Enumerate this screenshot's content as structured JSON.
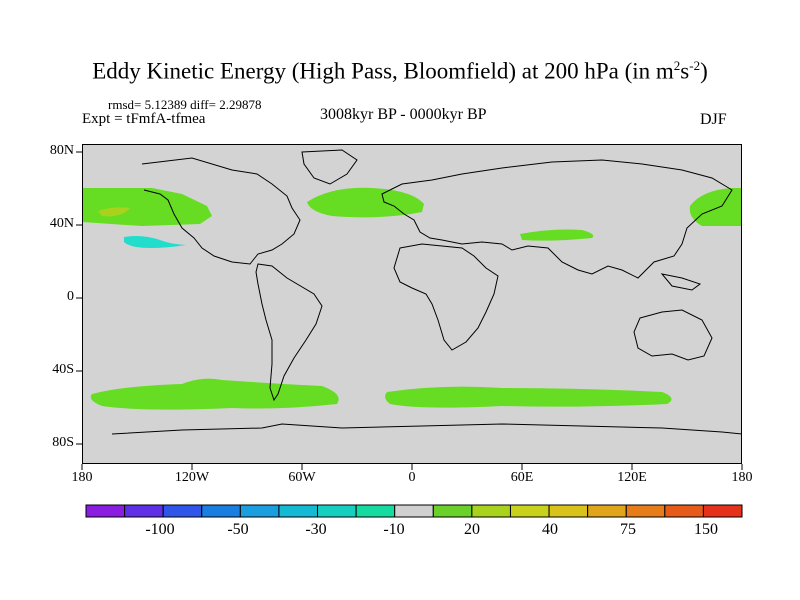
{
  "title_main": "Eddy Kinetic Energy (High Pass, Bloomfield) at 200 hPa (in m",
  "title_sup1": "2",
  "title_mid": "s",
  "title_sup2": "-2",
  "title_end": ")",
  "stats": "rmsd= 5.12389 diff= 2.29878",
  "experiment": "Expt = tFmfA-tfmea",
  "period": "3008kyr BP - 0000kyr BP",
  "season": "DJF",
  "lat_labels": [
    "80N",
    "40N",
    "0",
    "40S",
    "80S"
  ],
  "lon_labels": [
    "180",
    "120W",
    "60W",
    "0",
    "60E",
    "120E",
    "180"
  ],
  "colorbar": {
    "labels": [
      "-100",
      "-50",
      "-30",
      "-10",
      "20",
      "40",
      "75",
      "150"
    ],
    "colors": [
      "#8a1de0",
      "#5f2fe6",
      "#2f56e8",
      "#1a7ee0",
      "#1b9ee0",
      "#14b9d4",
      "#17cfc0",
      "#15dba0",
      "#d0d0d0",
      "#6ad12a",
      "#a8d21c",
      "#c8d21c",
      "#d9c21a",
      "#e0a51a",
      "#e67d1a",
      "#e65a1a",
      "#e6321a"
    ]
  },
  "map_colors": {
    "background": "#d3d3d3",
    "positive_low": "#66dd22",
    "positive_mid": "#a8d21c",
    "negative_low": "#22ddcc"
  }
}
